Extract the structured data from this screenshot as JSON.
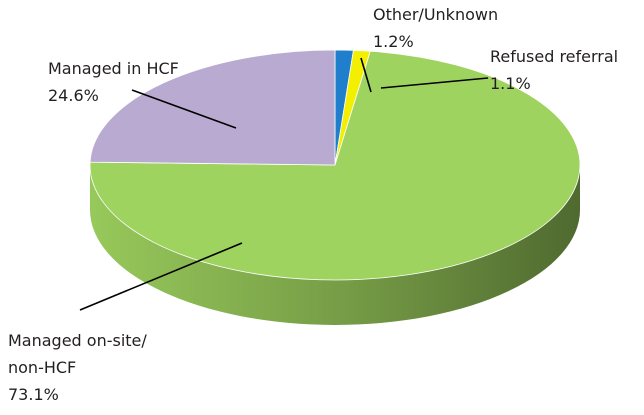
{
  "chart_data": {
    "type": "pie3d",
    "categories": [
      "Other/Unknown",
      "Refused referral",
      "Managed on-site/non-HCF",
      "Managed in HCF"
    ],
    "values": [
      1.2,
      1.1,
      73.1,
      24.6
    ],
    "value_labels": [
      "1.2%",
      "1.1%",
      "73.1%",
      "24.6%"
    ],
    "colors": [
      "#1f7fcc",
      "#f2ef00",
      "#9fd35f",
      "#b9aad2"
    ]
  }
}
